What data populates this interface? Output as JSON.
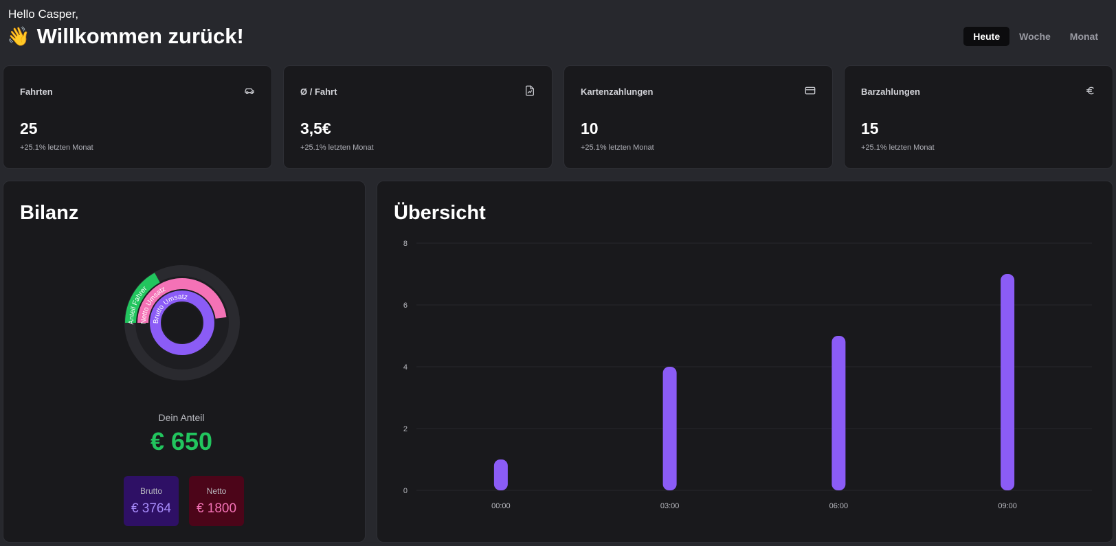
{
  "header": {
    "greeting": "Hello Casper,",
    "wave_emoji": "👋",
    "welcome": "Willkommen zurück!",
    "tabs": [
      {
        "label": "Heute",
        "active": true
      },
      {
        "label": "Woche",
        "active": false
      },
      {
        "label": "Monat",
        "active": false
      }
    ]
  },
  "stats": [
    {
      "label": "Fahrten",
      "icon": "car-icon",
      "value": "25",
      "sub": "+25.1% letzten Monat"
    },
    {
      "label": "Ø / Fahrt",
      "icon": "file-chart-icon",
      "value": "3,5€",
      "sub": "+25.1% letzten Monat"
    },
    {
      "label": "Kartenzahlungen",
      "icon": "credit-card-icon",
      "value": "10",
      "sub": "+25.1% letzten Monat"
    },
    {
      "label": "Barzahlungen",
      "icon": "euro-icon",
      "value": "15",
      "sub": "+25.1% letzten Monat"
    }
  ],
  "bilanz": {
    "title": "Bilanz",
    "rings": [
      {
        "name": "Anteil Fahrer",
        "color": "#22c55e",
        "fraction": 0.17
      },
      {
        "name": "Netto Umsatz",
        "color": "#f472b6",
        "fraction": 0.48
      },
      {
        "name": "Brutto Umsatz",
        "color": "#8b5cf6",
        "fraction": 1.0
      }
    ],
    "share_label": "Dein Anteil",
    "share_value": "€ 650",
    "brutto_label": "Brutto",
    "brutto_value": "€ 3764",
    "netto_label": "Netto",
    "netto_value": "€ 1800"
  },
  "uebersicht": {
    "title": "Übersicht"
  },
  "chart_data": {
    "type": "bar",
    "categories": [
      "00:00",
      "03:00",
      "06:00",
      "09:00"
    ],
    "values": [
      1,
      4,
      5,
      7
    ],
    "ylim": [
      0,
      8
    ],
    "yticks": [
      0,
      2,
      4,
      6,
      8
    ],
    "grid": true,
    "bar_color": "#8b5cf6"
  }
}
